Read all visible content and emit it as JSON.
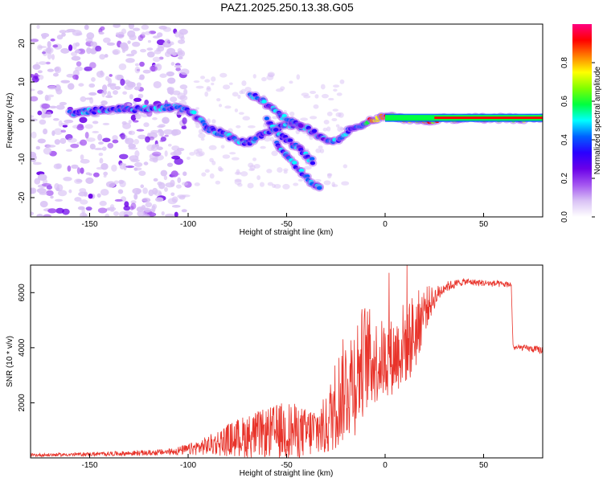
{
  "title": "PAZ1.2025.250.13.38.G05",
  "colors": {
    "signal_line": "#e8332a",
    "axis": "#000000",
    "background": "#ffffff",
    "colorbar_stops": [
      "#ffffff",
      "#d9c2f5",
      "#a455f0",
      "#6a00e8",
      "#2a00ff",
      "#0060ff",
      "#00ffff",
      "#00ff40",
      "#80ff00",
      "#ffff00",
      "#ff8000",
      "#ff0000",
      "#ff0080"
    ]
  },
  "chart_data": [
    {
      "type": "heatmap",
      "name": "spectrogram",
      "xlabel": "Height of straight line (km)",
      "ylabel": "Frequency (Hz)",
      "xlim": [
        -180,
        80
      ],
      "ylim": [
        -25,
        25
      ],
      "xticks": [
        "-150",
        "-100",
        "-50",
        "0",
        "50"
      ],
      "xtick_values": [
        -150,
        -100,
        -50,
        0,
        50
      ],
      "yticks": [
        "-20",
        "-10",
        "0",
        "10",
        "20"
      ],
      "ytick_values": [
        -20,
        -10,
        0,
        10,
        20
      ],
      "colorbar": {
        "label": "Normalized spectral amplitude",
        "range": [
          0,
          1
        ],
        "ticks": [
          "0.0",
          "0.2",
          "0.4",
          "0.6",
          "0.8"
        ],
        "tick_values": [
          0.0,
          0.2,
          0.4,
          0.6,
          0.8
        ]
      },
      "ridges": [
        {
          "name": "main",
          "points": [
            [
              -160,
              2
            ],
            [
              -140,
              3
            ],
            [
              -120,
              3
            ],
            [
              -105,
              3.5
            ],
            [
              -98,
              2
            ],
            [
              -90,
              -2
            ],
            [
              -80,
              -4
            ],
            [
              -70,
              -6
            ],
            [
              -60,
              -3
            ],
            [
              -50,
              -1
            ],
            [
              -40,
              -2
            ],
            [
              -30,
              -5
            ],
            [
              -25,
              -5.5
            ],
            [
              -20,
              -3
            ],
            [
              -12,
              -1
            ],
            [
              -5,
              0.5
            ],
            [
              0,
              1
            ],
            [
              10,
              0.5
            ],
            [
              20,
              0
            ],
            [
              30,
              0.5
            ],
            [
              40,
              0.5
            ],
            [
              80,
              0.5
            ]
          ]
        },
        {
          "name": "upper-branch",
          "points": [
            [
              -68,
              7
            ],
            [
              -62,
              5
            ],
            [
              -55,
              2
            ],
            [
              -48,
              0
            ],
            [
              -42,
              -2
            ]
          ]
        },
        {
          "name": "lower-branch-1",
          "points": [
            [
              -60,
              0
            ],
            [
              -55,
              -3
            ],
            [
              -50,
              -5
            ],
            [
              -45,
              -7
            ],
            [
              -40,
              -9
            ],
            [
              -36,
              -11
            ]
          ]
        },
        {
          "name": "lower-branch-2",
          "points": [
            [
              -55,
              -6
            ],
            [
              -50,
              -9
            ],
            [
              -45,
              -12
            ],
            [
              -40,
              -15
            ],
            [
              -36,
              -17
            ],
            [
              -32,
              -18
            ]
          ]
        }
      ]
    },
    {
      "type": "line",
      "name": "snr",
      "xlabel": "Height of straight line (km)",
      "ylabel": "SNR (10 * v/v)",
      "xlim": [
        -180,
        80
      ],
      "ylim": [
        0,
        7000
      ],
      "xticks": [
        "-150",
        "-100",
        "-50",
        "0",
        "50"
      ],
      "xtick_values": [
        -150,
        -100,
        -50,
        0,
        50
      ],
      "yticks": [
        "2000",
        "4000",
        "6000"
      ],
      "ytick_values": [
        2000,
        4000,
        6000
      ],
      "envelope": {
        "x": [
          -180,
          -160,
          -140,
          -120,
          -110,
          -100,
          -90,
          -80,
          -70,
          -60,
          -50,
          -40,
          -30,
          -25,
          -20,
          -15,
          -10,
          -5,
          0,
          5,
          10,
          15,
          20,
          25,
          30,
          40,
          50,
          60,
          64,
          65,
          70,
          80
        ],
        "mean": [
          100,
          120,
          150,
          180,
          220,
          300,
          450,
          650,
          800,
          900,
          1000,
          900,
          1100,
          2000,
          2600,
          3000,
          3700,
          3500,
          3600,
          3700,
          4200,
          4500,
          5400,
          5800,
          6200,
          6400,
          6350,
          6300,
          6300,
          4000,
          4000,
          3900
        ],
        "noise": [
          60,
          60,
          80,
          100,
          120,
          200,
          350,
          600,
          800,
          900,
          1100,
          900,
          1100,
          1700,
          2000,
          2200,
          2000,
          1600,
          1400,
          1400,
          1600,
          1500,
          900,
          400,
          200,
          120,
          120,
          120,
          100,
          100,
          100,
          150
        ]
      },
      "peak_max": 7000
    }
  ]
}
